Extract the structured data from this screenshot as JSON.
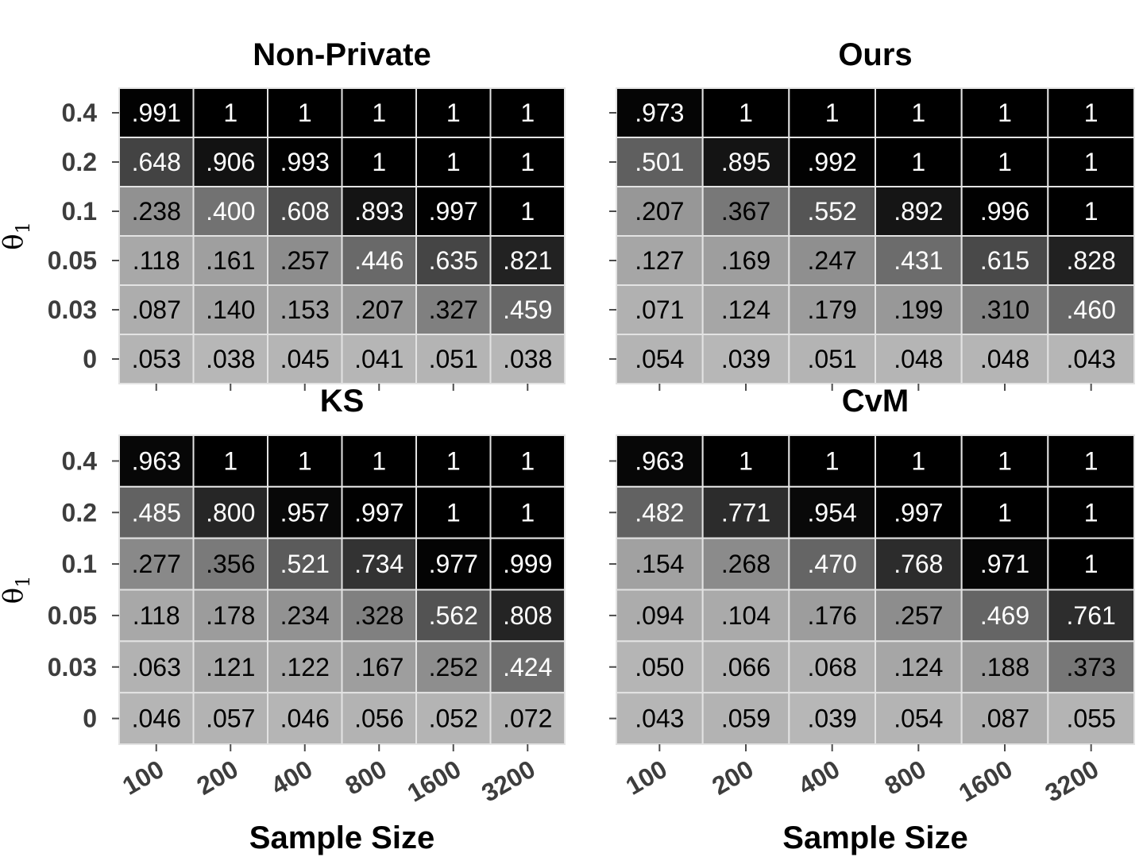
{
  "chart_data": [
    {
      "type": "heatmap",
      "title": "Non-Private",
      "x": [
        "100",
        "200",
        "400",
        "800",
        "1600",
        "3200"
      ],
      "y": [
        "0.4",
        "0.2",
        "0.1",
        "0.05",
        "0.03",
        "0"
      ],
      "values": [
        [
          0.991,
          1,
          1,
          1,
          1,
          1
        ],
        [
          0.648,
          0.906,
          0.993,
          1,
          1,
          1
        ],
        [
          0.238,
          0.4,
          0.608,
          0.893,
          0.997,
          1
        ],
        [
          0.118,
          0.161,
          0.257,
          0.446,
          0.635,
          0.821
        ],
        [
          0.087,
          0.14,
          0.153,
          0.207,
          0.327,
          0.459
        ],
        [
          0.053,
          0.038,
          0.045,
          0.041,
          0.051,
          0.038
        ]
      ],
      "labels": [
        [
          ".991",
          "1",
          "1",
          "1",
          "1",
          "1"
        ],
        [
          ".648",
          ".906",
          ".993",
          "1",
          "1",
          "1"
        ],
        [
          ".238",
          ".400",
          ".608",
          ".893",
          ".997",
          "1"
        ],
        [
          ".118",
          ".161",
          ".257",
          ".446",
          ".635",
          ".821"
        ],
        [
          ".087",
          ".140",
          ".153",
          ".207",
          ".327",
          ".459"
        ],
        [
          ".053",
          ".038",
          ".045",
          ".041",
          ".051",
          ".038"
        ]
      ],
      "xlabel": "",
      "ylabel": "θ1"
    },
    {
      "type": "heatmap",
      "title": "Ours",
      "x": [
        "100",
        "200",
        "400",
        "800",
        "1600",
        "3200"
      ],
      "y": [
        "0.4",
        "0.2",
        "0.1",
        "0.05",
        "0.03",
        "0"
      ],
      "values": [
        [
          0.973,
          1,
          1,
          1,
          1,
          1
        ],
        [
          0.501,
          0.895,
          0.992,
          1,
          1,
          1
        ],
        [
          0.207,
          0.367,
          0.552,
          0.892,
          0.996,
          1
        ],
        [
          0.127,
          0.169,
          0.247,
          0.431,
          0.615,
          0.828
        ],
        [
          0.071,
          0.124,
          0.179,
          0.199,
          0.31,
          0.46
        ],
        [
          0.054,
          0.039,
          0.051,
          0.048,
          0.048,
          0.043
        ]
      ],
      "labels": [
        [
          ".973",
          "1",
          "1",
          "1",
          "1",
          "1"
        ],
        [
          ".501",
          ".895",
          ".992",
          "1",
          "1",
          "1"
        ],
        [
          ".207",
          ".367",
          ".552",
          ".892",
          ".996",
          "1"
        ],
        [
          ".127",
          ".169",
          ".247",
          ".431",
          ".615",
          ".828"
        ],
        [
          ".071",
          ".124",
          ".179",
          ".199",
          ".310",
          ".460"
        ],
        [
          ".054",
          ".039",
          ".051",
          ".048",
          ".048",
          ".043"
        ]
      ],
      "xlabel": "",
      "ylabel": ""
    },
    {
      "type": "heatmap",
      "title": "KS",
      "x": [
        "100",
        "200",
        "400",
        "800",
        "1600",
        "3200"
      ],
      "y": [
        "0.4",
        "0.2",
        "0.1",
        "0.05",
        "0.03",
        "0"
      ],
      "values": [
        [
          0.963,
          1,
          1,
          1,
          1,
          1
        ],
        [
          0.485,
          0.8,
          0.957,
          0.997,
          1,
          1
        ],
        [
          0.277,
          0.356,
          0.521,
          0.734,
          0.977,
          0.999
        ],
        [
          0.118,
          0.178,
          0.234,
          0.328,
          0.562,
          0.808
        ],
        [
          0.063,
          0.121,
          0.122,
          0.167,
          0.252,
          0.424
        ],
        [
          0.046,
          0.057,
          0.046,
          0.056,
          0.052,
          0.072
        ]
      ],
      "labels": [
        [
          ".963",
          "1",
          "1",
          "1",
          "1",
          "1"
        ],
        [
          ".485",
          ".800",
          ".957",
          ".997",
          "1",
          "1"
        ],
        [
          ".277",
          ".356",
          ".521",
          ".734",
          ".977",
          ".999"
        ],
        [
          ".118",
          ".178",
          ".234",
          ".328",
          ".562",
          ".808"
        ],
        [
          ".063",
          ".121",
          ".122",
          ".167",
          ".252",
          ".424"
        ],
        [
          ".046",
          ".057",
          ".046",
          ".056",
          ".052",
          ".072"
        ]
      ],
      "xlabel": "Sample Size",
      "ylabel": "θ1"
    },
    {
      "type": "heatmap",
      "title": "CvM",
      "x": [
        "100",
        "200",
        "400",
        "800",
        "1600",
        "3200"
      ],
      "y": [
        "0.4",
        "0.2",
        "0.1",
        "0.05",
        "0.03",
        "0"
      ],
      "values": [
        [
          0.963,
          1,
          1,
          1,
          1,
          1
        ],
        [
          0.482,
          0.771,
          0.954,
          0.997,
          1,
          1
        ],
        [
          0.154,
          0.268,
          0.47,
          0.768,
          0.971,
          1
        ],
        [
          0.094,
          0.104,
          0.176,
          0.257,
          0.469,
          0.761
        ],
        [
          0.05,
          0.066,
          0.068,
          0.124,
          0.188,
          0.373
        ],
        [
          0.043,
          0.059,
          0.039,
          0.054,
          0.087,
          0.055
        ]
      ],
      "labels": [
        [
          ".963",
          "1",
          "1",
          "1",
          "1",
          "1"
        ],
        [
          ".482",
          ".771",
          ".954",
          ".997",
          "1",
          "1"
        ],
        [
          ".154",
          ".268",
          ".470",
          ".768",
          ".971",
          "1"
        ],
        [
          ".094",
          ".104",
          ".176",
          ".257",
          ".469",
          ".761"
        ],
        [
          ".050",
          ".066",
          ".068",
          ".124",
          ".188",
          ".373"
        ],
        [
          ".043",
          ".059",
          ".039",
          ".054",
          ".087",
          ".055"
        ]
      ],
      "xlabel": "Sample Size",
      "ylabel": ""
    }
  ],
  "colors": {
    "low": "#bebebe",
    "high": "#000000",
    "cell_border": "#e3e3e3",
    "panel_background": "#ebebeb",
    "axis_text": "#3d3d3d",
    "text_on_dark": "#ffffff",
    "text_on_light": "#000000"
  }
}
